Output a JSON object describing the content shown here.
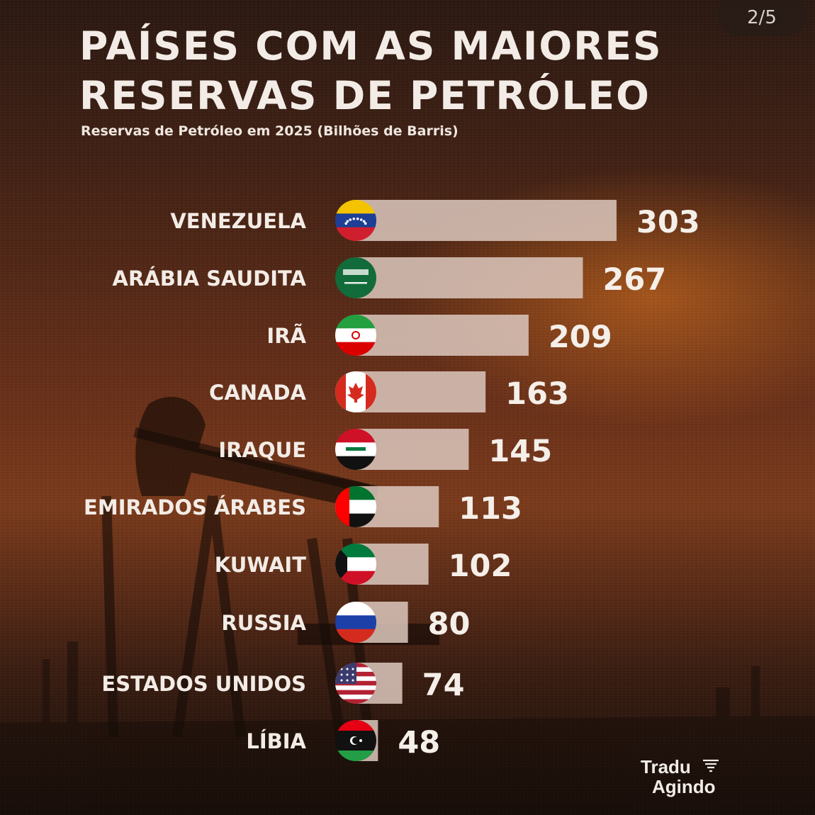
{
  "page": {
    "counter": "2/5"
  },
  "header": {
    "title_line1": "PAÍSES COM AS MAIORES",
    "title_line2": "RESERVAS DE PETRÓLEO",
    "subtitle": "Reservas de Petróleo em 2025 (Bilhões de Barris)"
  },
  "brand": {
    "line1": "Tradu",
    "line2": "Agindo"
  },
  "chart_data": {
    "type": "bar",
    "orientation": "horizontal",
    "title": "PAÍSES COM AS MAIORES RESERVAS DE PETRÓLEO",
    "subtitle": "Reservas de Petróleo em 2025 (Bilhões de Barris)",
    "categories": [
      "VENEZUELA",
      "ARÁBIA SAUDITA",
      "IRÃ",
      "CANADA",
      "IRAQUE",
      "EMIRADOS ÁRABES",
      "KUWAIT",
      "RUSSIA",
      "ESTADOS UNIDOS",
      "LÍBIA"
    ],
    "values": [
      303,
      267,
      209,
      163,
      145,
      113,
      102,
      80,
      74,
      48
    ],
    "flags": [
      "venezuela-flag-icon",
      "saudi-arabia-flag-icon",
      "iran-flag-icon",
      "canada-flag-icon",
      "iraq-flag-icon",
      "uae-flag-icon",
      "kuwait-flag-icon",
      "russia-flag-icon",
      "usa-flag-icon",
      "libya-flag-icon"
    ],
    "bar_color": "#d8c3b8",
    "grid": false,
    "legend": "none"
  }
}
